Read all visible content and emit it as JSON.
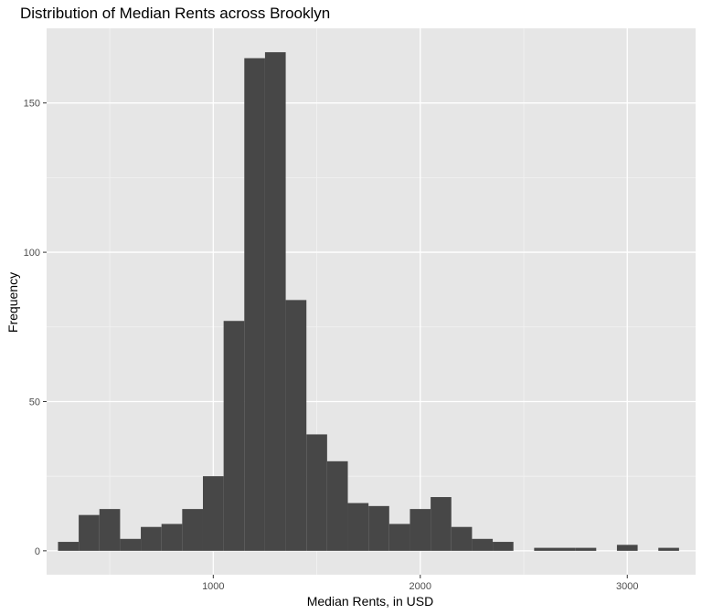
{
  "chart_data": {
    "type": "bar",
    "title": "Distribution of Median Rents across Brooklyn",
    "xlabel": "Median Rents, in USD",
    "ylabel": "Frequency",
    "bin_width": 100,
    "bins": [
      {
        "x_start": 250,
        "x_end": 350,
        "count": 3
      },
      {
        "x_start": 350,
        "x_end": 450,
        "count": 12
      },
      {
        "x_start": 450,
        "x_end": 550,
        "count": 14
      },
      {
        "x_start": 550,
        "x_end": 650,
        "count": 4
      },
      {
        "x_start": 650,
        "x_end": 750,
        "count": 8
      },
      {
        "x_start": 750,
        "x_end": 850,
        "count": 9
      },
      {
        "x_start": 850,
        "x_end": 950,
        "count": 14
      },
      {
        "x_start": 950,
        "x_end": 1050,
        "count": 25
      },
      {
        "x_start": 1050,
        "x_end": 1150,
        "count": 77
      },
      {
        "x_start": 1150,
        "x_end": 1250,
        "count": 165
      },
      {
        "x_start": 1250,
        "x_end": 1350,
        "count": 167
      },
      {
        "x_start": 1350,
        "x_end": 1450,
        "count": 84
      },
      {
        "x_start": 1450,
        "x_end": 1550,
        "count": 39
      },
      {
        "x_start": 1550,
        "x_end": 1650,
        "count": 30
      },
      {
        "x_start": 1650,
        "x_end": 1750,
        "count": 16
      },
      {
        "x_start": 1750,
        "x_end": 1850,
        "count": 15
      },
      {
        "x_start": 1850,
        "x_end": 1950,
        "count": 9
      },
      {
        "x_start": 1950,
        "x_end": 2050,
        "count": 14
      },
      {
        "x_start": 2050,
        "x_end": 2150,
        "count": 18
      },
      {
        "x_start": 2150,
        "x_end": 2250,
        "count": 8
      },
      {
        "x_start": 2250,
        "x_end": 2350,
        "count": 4
      },
      {
        "x_start": 2350,
        "x_end": 2450,
        "count": 3
      },
      {
        "x_start": 2450,
        "x_end": 2550,
        "count": 0
      },
      {
        "x_start": 2550,
        "x_end": 2650,
        "count": 1
      },
      {
        "x_start": 2650,
        "x_end": 2750,
        "count": 1
      },
      {
        "x_start": 2750,
        "x_end": 2850,
        "count": 1
      },
      {
        "x_start": 2850,
        "x_end": 2950,
        "count": 0
      },
      {
        "x_start": 2950,
        "x_end": 3050,
        "count": 2
      },
      {
        "x_start": 3050,
        "x_end": 3150,
        "count": 0
      },
      {
        "x_start": 3150,
        "x_end": 3250,
        "count": 1
      }
    ],
    "xlim": [
      195,
      3330
    ],
    "ylim": [
      -8,
      175
    ],
    "x_ticks": [
      1000,
      2000,
      3000
    ],
    "x_tick_labels": [
      "1000",
      "2000",
      "3000"
    ],
    "y_ticks": [
      0,
      50,
      100,
      150
    ],
    "y_tick_labels": [
      "0",
      "50",
      "100",
      "150"
    ],
    "grid": true,
    "legend": "none",
    "colors": {
      "bar": "#474747",
      "panel": "#e6e6e6",
      "grid_major": "#ffffff",
      "grid_minor": "#f2f2f2"
    }
  }
}
